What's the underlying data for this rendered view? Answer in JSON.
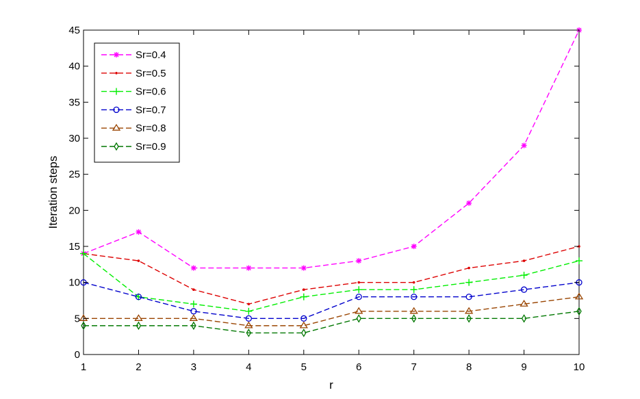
{
  "chart_data": {
    "type": "line",
    "title": "",
    "xlabel": "r",
    "ylabel": "Iteration steps",
    "xlim": [
      1,
      10
    ],
    "ylim": [
      0,
      45
    ],
    "xticks": [
      "1",
      "2",
      "3",
      "4",
      "5",
      "6",
      "7",
      "8",
      "9",
      "10"
    ],
    "yticks": [
      "0",
      "5",
      "10",
      "15",
      "20",
      "25",
      "30",
      "35",
      "40",
      "45"
    ],
    "grid": false,
    "legend_position": "top-left",
    "x": [
      1,
      2,
      3,
      4,
      5,
      6,
      7,
      8,
      9,
      10
    ],
    "series": [
      {
        "name": "Sr=0.4",
        "color": "#ff00ff",
        "marker": "asterisk",
        "values": [
          14,
          17,
          12,
          12,
          12,
          13,
          15,
          21,
          29,
          45
        ]
      },
      {
        "name": "Sr=0.5",
        "color": "#dd0000",
        "marker": "dot",
        "values": [
          14,
          13,
          9,
          7,
          9,
          10,
          10,
          12,
          13,
          15
        ]
      },
      {
        "name": "Sr=0.6",
        "color": "#00ee00",
        "marker": "plus",
        "values": [
          14,
          8,
          7,
          6,
          8,
          9,
          9,
          10,
          11,
          13
        ]
      },
      {
        "name": "Sr=0.7",
        "color": "#0000cc",
        "marker": "circle",
        "values": [
          10,
          8,
          6,
          5,
          5,
          8,
          8,
          8,
          9,
          10
        ]
      },
      {
        "name": "Sr=0.8",
        "color": "#994400",
        "marker": "triangle",
        "values": [
          5,
          5,
          5,
          4,
          4,
          6,
          6,
          6,
          7,
          8
        ]
      },
      {
        "name": "Sr=0.9",
        "color": "#007700",
        "marker": "diamond",
        "values": [
          4,
          4,
          4,
          3,
          3,
          5,
          5,
          5,
          5,
          6
        ]
      }
    ]
  }
}
